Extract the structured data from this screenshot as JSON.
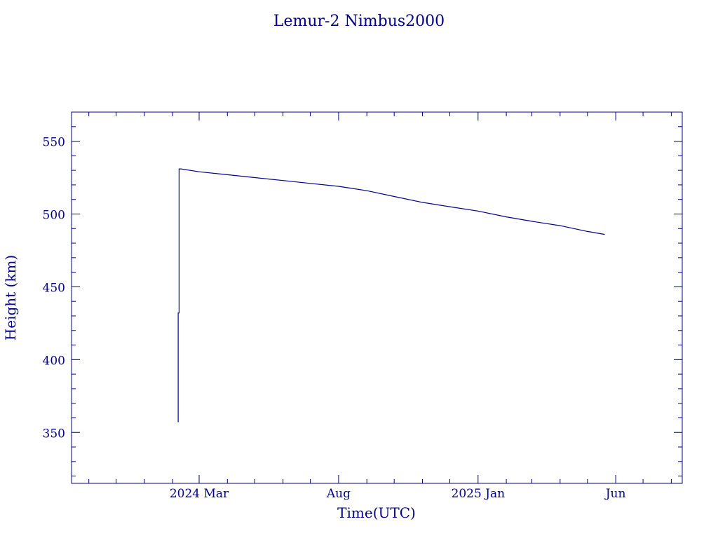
{
  "chart_data": {
    "type": "line",
    "title": "Lemur-2 Nimbus2000",
    "xlabel": "Time(UTC)",
    "ylabel": "Height (km)",
    "color": "#00008b",
    "ylim": [
      315,
      570
    ],
    "xlim": [
      "2023-10-13",
      "2025-08-13"
    ],
    "x_tick_labels": [
      {
        "date": "2024-03-01",
        "label": "2024 Mar"
      },
      {
        "date": "2024-08-01",
        "label": "Aug"
      },
      {
        "date": "2025-01-01",
        "label": "2025 Jan"
      },
      {
        "date": "2025-06-01",
        "label": "Jun"
      }
    ],
    "y_ticks": [
      350,
      400,
      450,
      500,
      550
    ],
    "series": [
      {
        "x": [
          "2024-02-07",
          "2024-02-07",
          "2024-02-08",
          "2024-02-08",
          "2024-02-10",
          "2024-03-01",
          "2024-04-01",
          "2024-05-01",
          "2024-06-01",
          "2024-07-01",
          "2024-08-01",
          "2024-09-01",
          "2024-10-01",
          "2024-11-01",
          "2024-12-01",
          "2025-01-01",
          "2025-02-01",
          "2025-03-01",
          "2025-04-01",
          "2025-05-01",
          "2025-05-20"
        ],
        "y": [
          357,
          432,
          432,
          531,
          531,
          529,
          527,
          525,
          523,
          521,
          519,
          516,
          512,
          508,
          505,
          502,
          498,
          495,
          492,
          488,
          486
        ]
      }
    ]
  }
}
